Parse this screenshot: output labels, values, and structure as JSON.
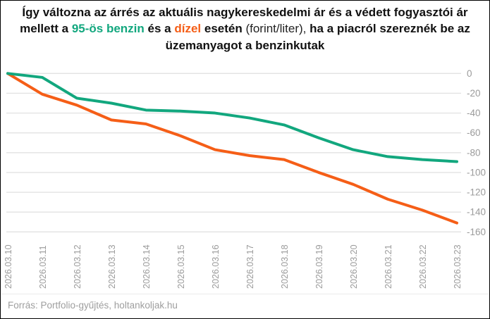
{
  "title": {
    "part1": "Így változna az árrés az aktuális nagykereskedelmi ár és a védett fogyasztói ár mellett a ",
    "benzin_label": "95-ös benzin",
    "part2": " és a ",
    "dizel_label": "dízel",
    "part3": " esetén ",
    "part4_light": "(forint/liter),",
    "part5": " ha a piacról szereznék be az üzemanyagot a benzinkutak"
  },
  "footer": {
    "source_text": "Forrás: Portfolio-gyűjtés, holtankoljak.hu"
  },
  "colors": {
    "benzin": "#12a77e",
    "dizel": "#f55e17",
    "grid": "#e2e2e2",
    "axis_text": "#9b9b9b",
    "title_text": "#111111"
  },
  "chart_data": {
    "type": "line",
    "x": [
      "2026.03.10",
      "2026.03.11",
      "2026.03.12",
      "2026.03.13",
      "2026.03.14",
      "2026.03.15",
      "2026.03.16",
      "2026.03.17",
      "2026.03.18",
      "2026.03.19",
      "2026.03.20",
      "2026.03.21",
      "2026.03.22",
      "2026.03.23"
    ],
    "series": [
      {
        "name": "95-ös benzin",
        "color_key": "benzin",
        "values": [
          0,
          -4,
          -25,
          -30,
          -37,
          -38,
          -40,
          -45,
          -52,
          -65,
          -77,
          -84,
          -87,
          -89
        ]
      },
      {
        "name": "dízel",
        "color_key": "dizel",
        "values": [
          0,
          -21,
          -32,
          -47,
          -51,
          -63,
          -77,
          -83,
          -87,
          -100,
          -112,
          -127,
          -138,
          -151
        ]
      }
    ],
    "ylabel": "",
    "xlabel": "",
    "ylim": [
      -160,
      0
    ],
    "yticks": [
      0,
      -20,
      -40,
      -60,
      -80,
      -100,
      -120,
      -140,
      -160
    ],
    "grid": true,
    "legend": "none",
    "ytick_side": "right",
    "xlabel_rotation": -90
  }
}
